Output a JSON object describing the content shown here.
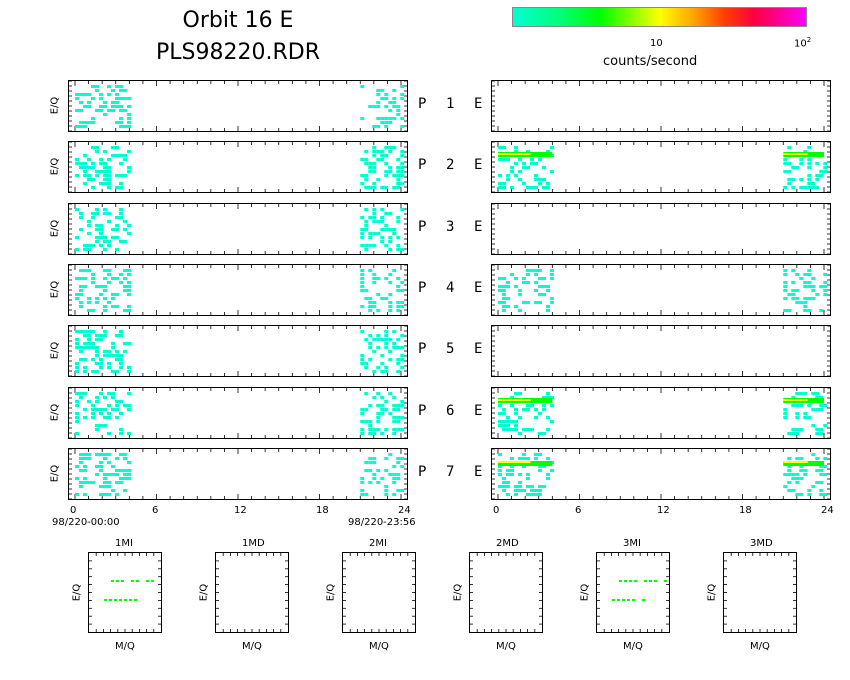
{
  "title_line1": "Orbit 16 E",
  "title_line2": "PLS98220.RDR",
  "colorbar": {
    "label": "counts/second",
    "tick1": "10",
    "tick2": "10",
    "tick2_exp": "2"
  },
  "ylabel": "E/Q",
  "panel_rows": [
    {
      "label": "P 1 E"
    },
    {
      "label": "P 2 E"
    },
    {
      "label": "P 3 E"
    },
    {
      "label": "P 4 E"
    },
    {
      "label": "P 5 E"
    },
    {
      "label": "P 6 E"
    },
    {
      "label": "P 7 E"
    }
  ],
  "xaxis": {
    "ticks": [
      "0",
      "6",
      "12",
      "18",
      "24"
    ],
    "start_label": "98/220-00:00",
    "end_label": "98/220-23:56"
  },
  "bottom_panels": [
    {
      "title": "1MI",
      "xlabel": "M/Q",
      "ylabel": "E/Q"
    },
    {
      "title": "1MD",
      "xlabel": "M/Q",
      "ylabel": "E/Q"
    },
    {
      "title": "2MI",
      "xlabel": "M/Q",
      "ylabel": "E/Q"
    },
    {
      "title": "2MD",
      "xlabel": "M/Q",
      "ylabel": "E/Q"
    },
    {
      "title": "3MI",
      "xlabel": "M/Q",
      "ylabel": "E/Q"
    },
    {
      "title": "3MD",
      "xlabel": "M/Q",
      "ylabel": "E/Q"
    }
  ],
  "colors": {
    "low": "#00ffd0",
    "mid": "#00ff00",
    "high": "#ffff00"
  },
  "chart_data": {
    "type": "heatmap",
    "x_range": [
      0,
      24
    ],
    "x_ticks": [
      0,
      6,
      12,
      18,
      24
    ],
    "left_panels": [
      {
        "row": "P 1",
        "active_hours": [
          [
            0,
            4
          ],
          [
            21,
            24
          ]
        ]
      },
      {
        "row": "P 2",
        "active_hours": [
          [
            0,
            4
          ],
          [
            21,
            24
          ]
        ]
      },
      {
        "row": "P 3",
        "active_hours": [
          [
            0,
            4
          ],
          [
            21,
            24
          ]
        ]
      },
      {
        "row": "P 4",
        "active_hours": [
          [
            0,
            4
          ],
          [
            21,
            24
          ]
        ]
      },
      {
        "row": "P 5",
        "active_hours": [
          [
            0,
            4
          ],
          [
            21,
            24
          ]
        ]
      },
      {
        "row": "P 6",
        "active_hours": [
          [
            0,
            4
          ],
          [
            21,
            24
          ]
        ]
      },
      {
        "row": "P 7",
        "active_hours": [
          [
            0,
            4
          ],
          [
            21,
            24
          ]
        ]
      }
    ],
    "right_panels": [
      {
        "row": "P 1",
        "active_hours": []
      },
      {
        "row": "P 2",
        "active_hours": [
          [
            0,
            4
          ],
          [
            21,
            24
          ]
        ]
      },
      {
        "row": "P 3",
        "active_hours": []
      },
      {
        "row": "P 4",
        "active_hours": [
          [
            0,
            4
          ],
          [
            21,
            24
          ]
        ]
      },
      {
        "row": "P 5",
        "active_hours": []
      },
      {
        "row": "P 6",
        "active_hours": [
          [
            0,
            4
          ],
          [
            21,
            24
          ]
        ]
      },
      {
        "row": "P 7",
        "active_hours": [
          [
            0,
            4
          ],
          [
            21,
            24
          ]
        ]
      }
    ]
  }
}
